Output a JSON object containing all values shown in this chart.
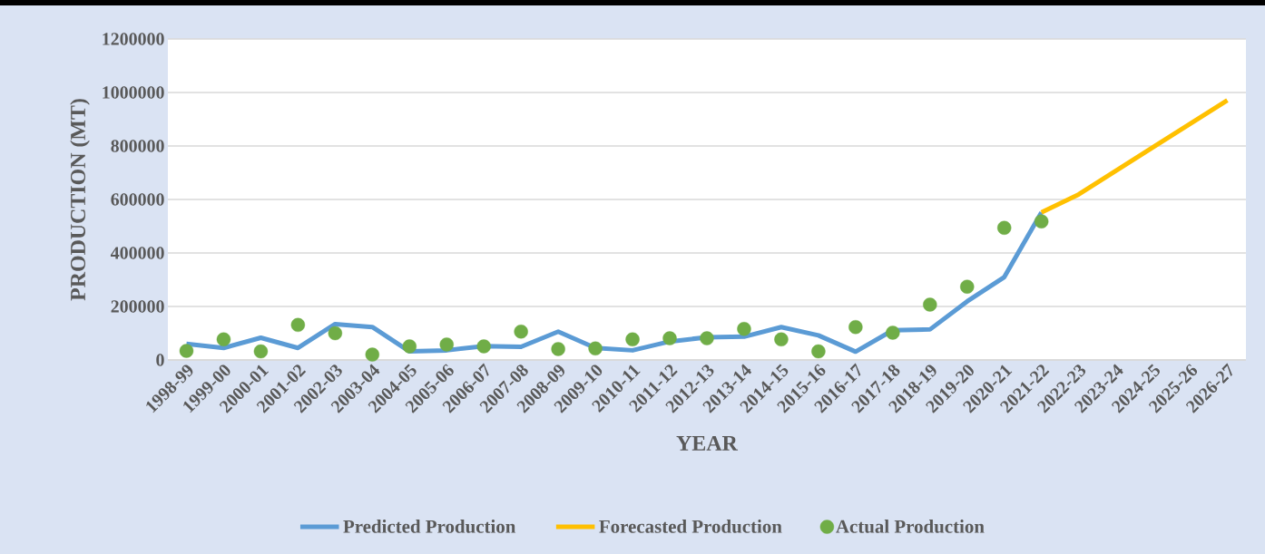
{
  "chart_data": {
    "type": "line",
    "xlabel": "YEAR",
    "ylabel": "PRODUCTION (MT)",
    "categories": [
      "1998-99",
      "1999-00",
      "2000-01",
      "2001-02",
      "2002-03",
      "2003-04",
      "2004-05",
      "2005-06",
      "2006-07",
      "2007-08",
      "2008-09",
      "2009-10",
      "2010-11",
      "2011-12",
      "2012-13",
      "2013-14",
      "2014-15",
      "2015-16",
      "2016-17",
      "2017-18",
      "2018-19",
      "2019-20",
      "2020-21",
      "2021-22",
      "2022-23",
      "2023-24",
      "2024-25",
      "2025-26",
      "2026-27"
    ],
    "series": [
      {
        "name": "Predicted Production",
        "color": "#5b9bd5",
        "values": [
          60000,
          45000,
          83000,
          45000,
          134000,
          123000,
          32000,
          36000,
          52000,
          49000,
          106000,
          45000,
          36000,
          69000,
          85000,
          87000,
          123000,
          92000,
          31000,
          111000,
          114000,
          219000,
          310000,
          552000,
          null,
          null,
          null,
          null,
          null
        ]
      },
      {
        "name": "Forecasted Production",
        "color": "#ffc000",
        "values": [
          null,
          null,
          null,
          null,
          null,
          null,
          null,
          null,
          null,
          null,
          null,
          null,
          null,
          null,
          null,
          null,
          null,
          null,
          null,
          null,
          null,
          null,
          null,
          552000,
          619000,
          707000,
          795000,
          883000,
          971000
        ]
      },
      {
        "name": "Actual Production",
        "type": "scatter",
        "color": "#70ad47",
        "values": [
          34000,
          77000,
          32000,
          131000,
          100000,
          20000,
          51000,
          58000,
          51000,
          106000,
          41000,
          43000,
          77000,
          81000,
          81000,
          116000,
          77000,
          32000,
          123000,
          102000,
          207000,
          274000,
          494000,
          518000,
          null,
          null,
          null,
          null,
          null
        ]
      }
    ],
    "ylim": [
      0,
      1200000
    ],
    "yticks": [
      0,
      200000,
      400000,
      600000,
      800000,
      1000000,
      1200000
    ],
    "grid": "y",
    "legend": "bottom"
  }
}
